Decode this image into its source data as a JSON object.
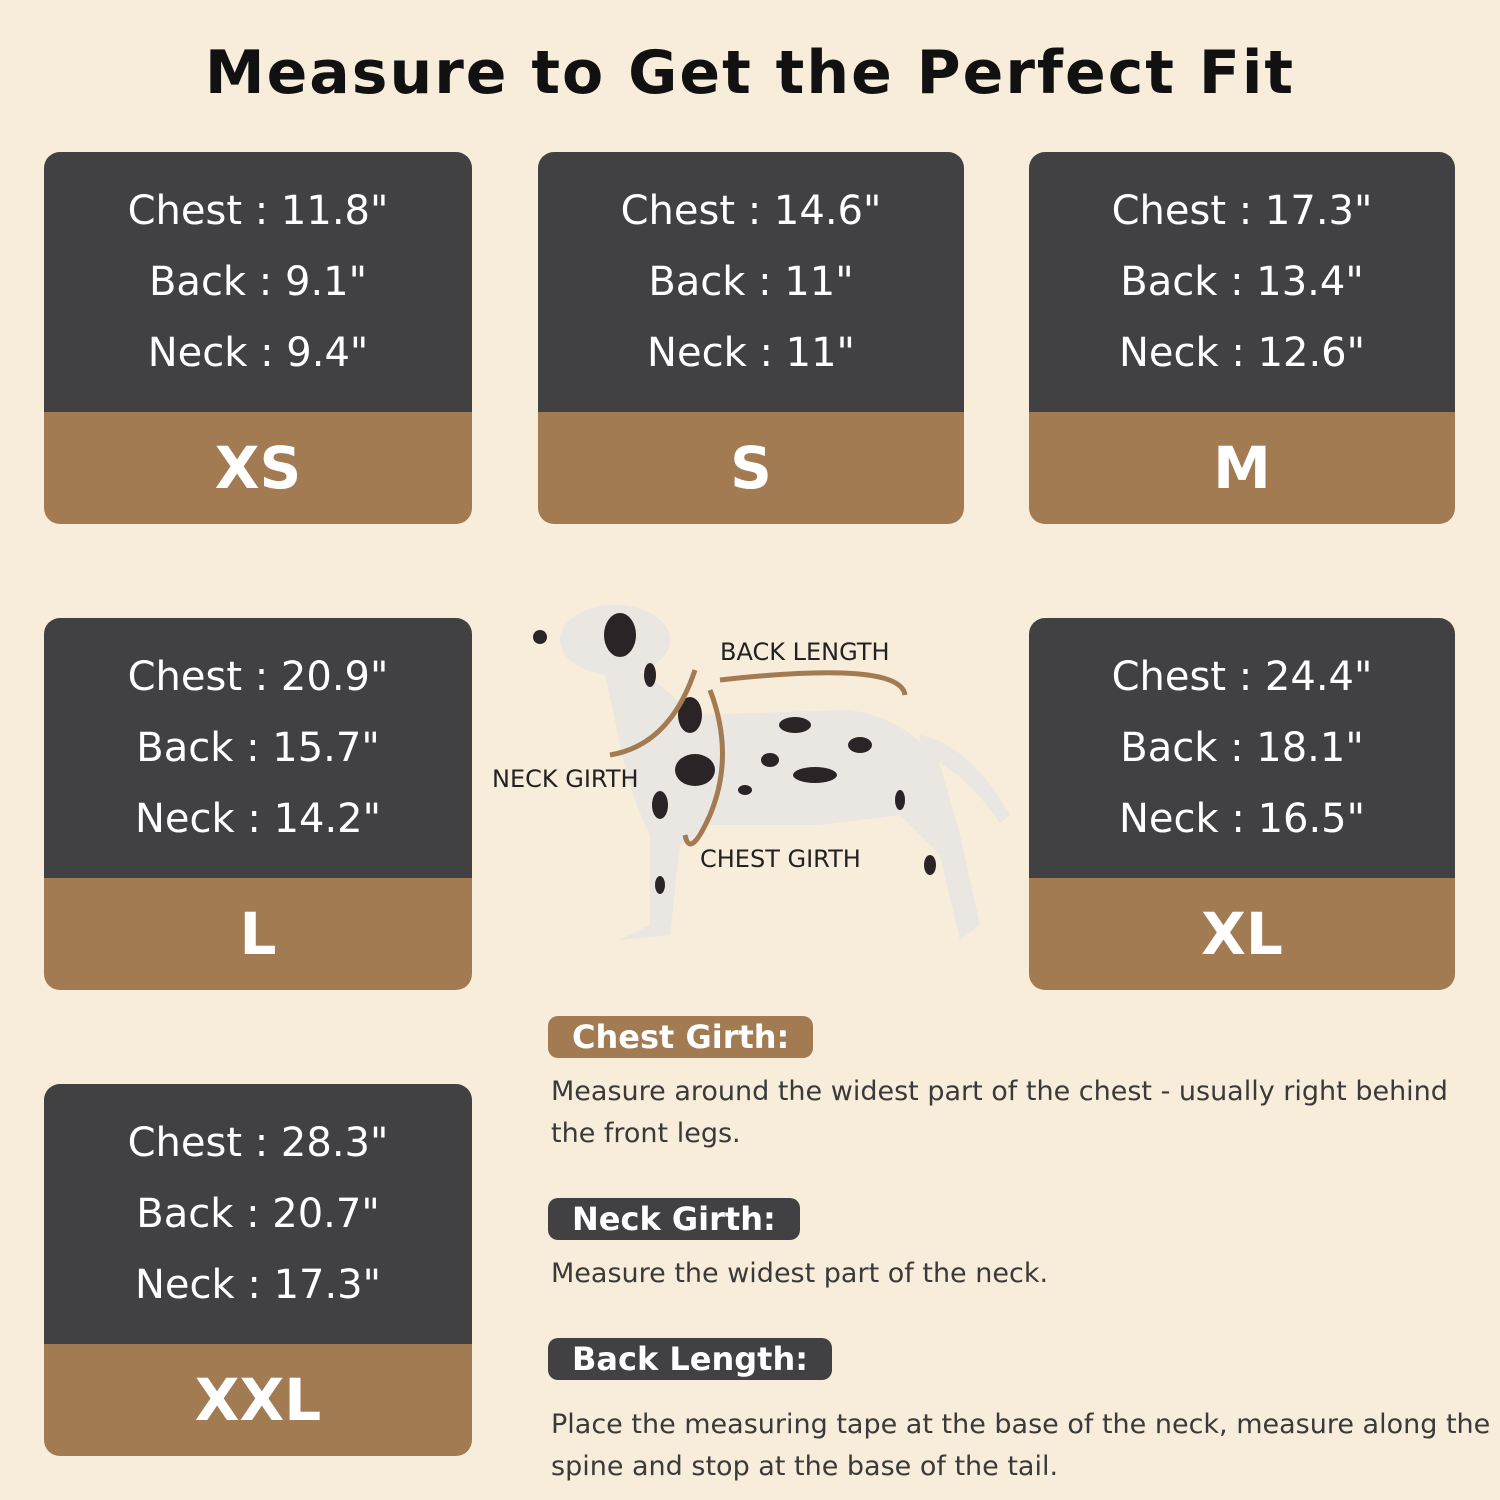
{
  "title": "Measure to Get the Perfect Fit",
  "colors": {
    "background": "#f8ecda",
    "card_dark": "#414144",
    "accent_brown": "#a37b52"
  },
  "sizes": [
    {
      "label": "XS",
      "chest": "Chest : 11.8\"",
      "back": "Back : 9.1\"",
      "neck": "Neck : 9.4\""
    },
    {
      "label": "S",
      "chest": "Chest : 14.6\"",
      "back": "Back : 11\"",
      "neck": "Neck : 11\""
    },
    {
      "label": "M",
      "chest": "Chest : 17.3\"",
      "back": "Back : 13.4\"",
      "neck": "Neck : 12.6\""
    },
    {
      "label": "L",
      "chest": "Chest : 20.9\"",
      "back": "Back : 15.7\"",
      "neck": "Neck : 14.2\""
    },
    {
      "label": "XL",
      "chest": "Chest : 24.4\"",
      "back": "Back : 18.1\"",
      "neck": "Neck : 16.5\""
    },
    {
      "label": "XXL",
      "chest": "Chest : 28.3\"",
      "back": "Back : 20.7\"",
      "neck": "Neck : 17.3\""
    }
  ],
  "diagram": {
    "back_length": "BACK LENGTH",
    "neck_girth": "NECK GIRTH",
    "chest_girth": "CHEST GIRTH",
    "icon": "dalmatian-dog-illustration"
  },
  "instructions": [
    {
      "heading": "Chest Girth:",
      "text": "Measure around the widest part of the chest - usually right behind the front legs."
    },
    {
      "heading": "Neck Girth:",
      "text": "Measure the widest part of the neck."
    },
    {
      "heading": "Back Length:",
      "text": "Place the measuring tape at the base of the neck, measure along the spine and stop at the base of the tail."
    }
  ]
}
